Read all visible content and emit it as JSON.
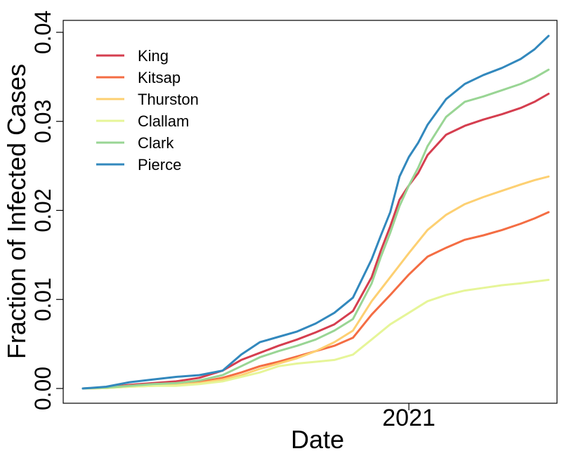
{
  "chart_data": {
    "type": "line",
    "title": "",
    "xlabel": "Date",
    "ylabel": "Fraction of Infected Cases",
    "ylim": [
      0,
      0.04
    ],
    "y_ticks": [
      "0.00",
      "0.01",
      "0.02",
      "0.03",
      "0.04"
    ],
    "y_tick_values": [
      0,
      0.01,
      0.02,
      0.03,
      0.04
    ],
    "x_ticks": [
      {
        "label": "2021",
        "value": 0.7
      }
    ],
    "x_note": "x values are fractions of the plotted date range (left end = first date, right end = last date)",
    "grid": false,
    "legend_position": "top-left",
    "series": [
      {
        "name": "King",
        "color": "#d53e4f",
        "x": [
          0,
          0.05,
          0.1,
          0.15,
          0.2,
          0.25,
          0.3,
          0.34,
          0.38,
          0.42,
          0.46,
          0.5,
          0.54,
          0.58,
          0.62,
          0.64,
          0.66,
          0.68,
          0.7,
          0.72,
          0.74,
          0.78,
          0.82,
          0.86,
          0.9,
          0.94,
          0.97,
          1.0
        ],
        "y": [
          0,
          0.0001,
          0.0004,
          0.0006,
          0.0008,
          0.0012,
          0.002,
          0.0032,
          0.004,
          0.0048,
          0.0055,
          0.0063,
          0.0072,
          0.0087,
          0.0125,
          0.0155,
          0.0182,
          0.0212,
          0.0228,
          0.0242,
          0.0262,
          0.0285,
          0.0295,
          0.0302,
          0.0308,
          0.0315,
          0.0322,
          0.0331
        ]
      },
      {
        "name": "Kitsap",
        "color": "#f46d43",
        "x": [
          0,
          0.05,
          0.1,
          0.15,
          0.2,
          0.25,
          0.3,
          0.34,
          0.38,
          0.42,
          0.46,
          0.5,
          0.54,
          0.58,
          0.62,
          0.66,
          0.7,
          0.74,
          0.78,
          0.82,
          0.86,
          0.9,
          0.94,
          0.97,
          1.0
        ],
        "y": [
          0,
          5e-05,
          0.0003,
          0.0004,
          0.0005,
          0.0007,
          0.0012,
          0.0018,
          0.0025,
          0.003,
          0.0036,
          0.0042,
          0.0048,
          0.0057,
          0.0083,
          0.0105,
          0.0128,
          0.0148,
          0.0158,
          0.0167,
          0.0172,
          0.0178,
          0.0185,
          0.0191,
          0.0198
        ]
      },
      {
        "name": "Thurston",
        "color": "#fdd072",
        "x": [
          0,
          0.05,
          0.1,
          0.15,
          0.2,
          0.25,
          0.3,
          0.34,
          0.38,
          0.42,
          0.46,
          0.5,
          0.54,
          0.58,
          0.62,
          0.66,
          0.7,
          0.74,
          0.78,
          0.82,
          0.86,
          0.9,
          0.94,
          0.97,
          1.0
        ],
        "y": [
          0,
          5e-05,
          0.0002,
          0.0003,
          0.0004,
          0.0006,
          0.001,
          0.0015,
          0.0022,
          0.0028,
          0.0034,
          0.0042,
          0.0052,
          0.0065,
          0.0098,
          0.0125,
          0.0152,
          0.0178,
          0.0195,
          0.0207,
          0.0215,
          0.0222,
          0.0229,
          0.0234,
          0.0238
        ]
      },
      {
        "name": "Clallam",
        "color": "#e6f598",
        "x": [
          0,
          0.05,
          0.1,
          0.15,
          0.2,
          0.25,
          0.3,
          0.34,
          0.38,
          0.42,
          0.46,
          0.5,
          0.54,
          0.58,
          0.62,
          0.66,
          0.7,
          0.74,
          0.78,
          0.82,
          0.86,
          0.9,
          0.94,
          0.97,
          1.0
        ],
        "y": [
          0,
          5e-05,
          0.0002,
          0.0003,
          0.0003,
          0.0005,
          0.0008,
          0.0013,
          0.0018,
          0.0025,
          0.0028,
          0.003,
          0.0032,
          0.0038,
          0.0055,
          0.0072,
          0.0085,
          0.0098,
          0.0105,
          0.011,
          0.0113,
          0.0116,
          0.0118,
          0.012,
          0.0122
        ]
      },
      {
        "name": "Clark",
        "color": "#99d594",
        "x": [
          0,
          0.05,
          0.1,
          0.15,
          0.2,
          0.25,
          0.3,
          0.34,
          0.38,
          0.42,
          0.46,
          0.5,
          0.54,
          0.58,
          0.62,
          0.64,
          0.66,
          0.68,
          0.7,
          0.72,
          0.74,
          0.78,
          0.82,
          0.86,
          0.9,
          0.94,
          0.97,
          1.0
        ],
        "y": [
          0,
          0.0001,
          0.0003,
          0.0005,
          0.0006,
          0.0009,
          0.0015,
          0.0025,
          0.0035,
          0.0042,
          0.0048,
          0.0055,
          0.0065,
          0.0078,
          0.0118,
          0.0148,
          0.0175,
          0.0205,
          0.0228,
          0.0248,
          0.0272,
          0.0305,
          0.0322,
          0.0328,
          0.0335,
          0.0342,
          0.0349,
          0.0358
        ]
      },
      {
        "name": "Pierce",
        "color": "#3288bd",
        "x": [
          0,
          0.05,
          0.1,
          0.15,
          0.2,
          0.25,
          0.3,
          0.34,
          0.38,
          0.42,
          0.46,
          0.5,
          0.54,
          0.58,
          0.62,
          0.64,
          0.66,
          0.68,
          0.7,
          0.72,
          0.74,
          0.78,
          0.82,
          0.86,
          0.9,
          0.94,
          0.97,
          1.0
        ],
        "y": [
          0,
          0.0002,
          0.0007,
          0.001,
          0.0013,
          0.0015,
          0.002,
          0.0038,
          0.0052,
          0.0058,
          0.0064,
          0.0073,
          0.0085,
          0.0102,
          0.0145,
          0.0172,
          0.0198,
          0.0238,
          0.026,
          0.0276,
          0.0296,
          0.0325,
          0.0342,
          0.0352,
          0.036,
          0.037,
          0.0381,
          0.0396
        ]
      }
    ]
  }
}
